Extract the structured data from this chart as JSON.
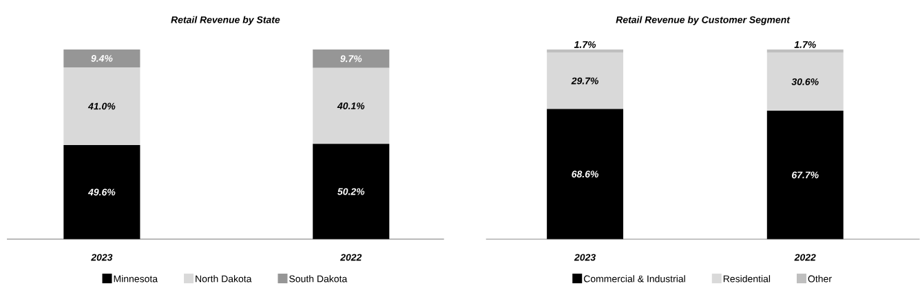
{
  "chart_data": [
    {
      "type": "bar",
      "stacked": true,
      "title": "Retail Revenue by State",
      "categories": [
        "2023",
        "2022"
      ],
      "ylim": [
        0,
        100
      ],
      "tick_labels": "x",
      "legend": "bottom",
      "series": [
        {
          "name": "Minnesota",
          "color": "#000000",
          "values": [
            49.6,
            50.2
          ],
          "value_labels": [
            "49.6%",
            "50.2%"
          ]
        },
        {
          "name": "North Dakota",
          "color": "#d9d9d9",
          "values": [
            41.0,
            40.1
          ],
          "value_labels": [
            "41.0%",
            "40.1%"
          ]
        },
        {
          "name": "South Dakota",
          "color": "#969696",
          "values": [
            9.4,
            9.7
          ],
          "value_labels": [
            "9.4%",
            "9.7%"
          ]
        }
      ]
    },
    {
      "type": "bar",
      "stacked": true,
      "title": "Retail Revenue by Customer Segment",
      "categories": [
        "2023",
        "2022"
      ],
      "ylim": [
        0,
        100
      ],
      "tick_labels": "x",
      "legend": "bottom",
      "series": [
        {
          "name": "Commercial & Industrial",
          "color": "#000000",
          "values": [
            68.6,
            67.7
          ],
          "value_labels": [
            "68.6%",
            "67.7%"
          ]
        },
        {
          "name": "Residential",
          "color": "#d9d9d9",
          "values": [
            29.7,
            30.6
          ],
          "value_labels": [
            "29.7%",
            "30.6%"
          ]
        },
        {
          "name": "Other",
          "color": "#bfbfbf",
          "values": [
            1.7,
            1.7
          ],
          "value_labels": [
            "1.7%",
            "1.7%"
          ]
        }
      ]
    }
  ]
}
